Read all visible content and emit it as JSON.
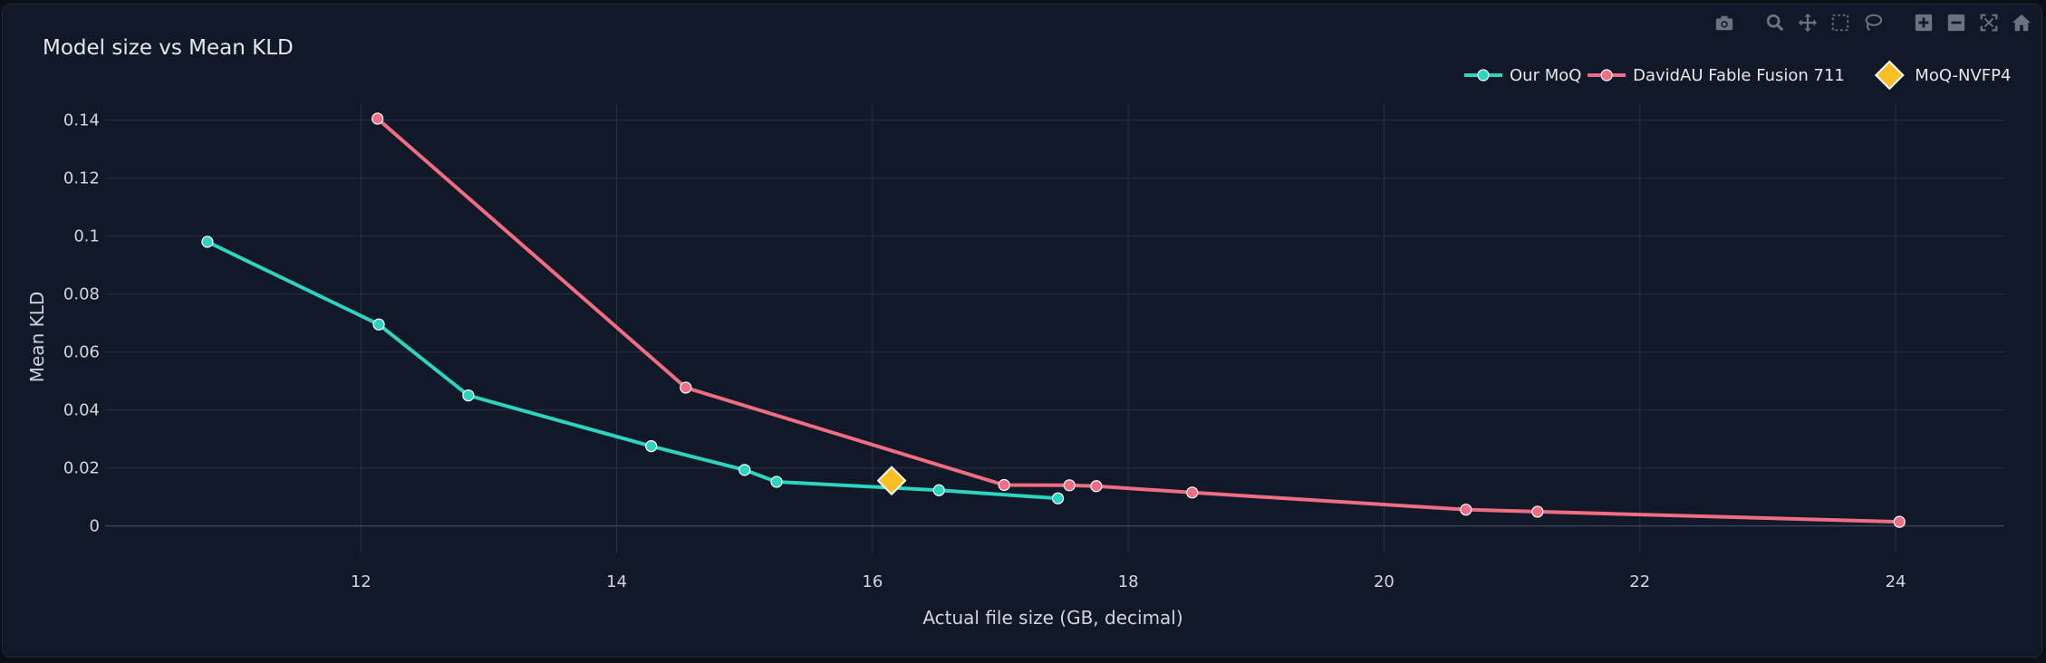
{
  "chart_data": {
    "type": "line",
    "title": "Model size vs Mean KLD",
    "xlabel": "Actual file size (GB, decimal)",
    "ylabel": "Mean KLD",
    "xlim": [
      10.0,
      24.85
    ],
    "ylim": [
      -0.0095,
      0.1455
    ],
    "xticks": [
      12,
      14,
      16,
      18,
      20,
      22,
      24
    ],
    "yticks": [
      0,
      0.02,
      0.04,
      0.06,
      0.08,
      0.1,
      0.12,
      0.14
    ],
    "ytick_labels": [
      "0",
      "0.02",
      "0.04",
      "0.06",
      "0.08",
      "0.1",
      "0.12",
      "0.14"
    ],
    "grid": true,
    "legend_position": "top-right",
    "series": [
      {
        "name": "Our MoQ",
        "color": "#2dd4bf",
        "marker": "circle",
        "mode": "lines+markers",
        "x": [
          10.8,
          12.14,
          12.84,
          14.27,
          15.0,
          15.25,
          16.52,
          17.45
        ],
        "y": [
          0.098,
          0.0695,
          0.045,
          0.0275,
          0.0193,
          0.0152,
          0.0123,
          0.0095
        ]
      },
      {
        "name": "DavidAU Fable Fusion 711",
        "color": "#f16d84",
        "marker": "circle",
        "mode": "lines+markers",
        "x": [
          12.13,
          14.54,
          17.03,
          17.54,
          17.75,
          18.5,
          20.64,
          21.2,
          24.03
        ],
        "y": [
          0.1405,
          0.0477,
          0.0141,
          0.014,
          0.0137,
          0.0115,
          0.0056,
          0.0049,
          0.0014
        ]
      },
      {
        "name": "MoQ-NVFP4",
        "color": "#fbbf24",
        "marker": "diamond",
        "mode": "markers",
        "x": [
          16.15
        ],
        "y": [
          0.0156
        ]
      }
    ]
  },
  "modebar": {
    "tools": [
      "camera-icon",
      "zoom-icon",
      "pan-icon",
      "box-select-icon",
      "lasso-icon",
      "zoom-in-icon",
      "zoom-out-icon",
      "autoscale-icon",
      "reset-icon"
    ]
  }
}
